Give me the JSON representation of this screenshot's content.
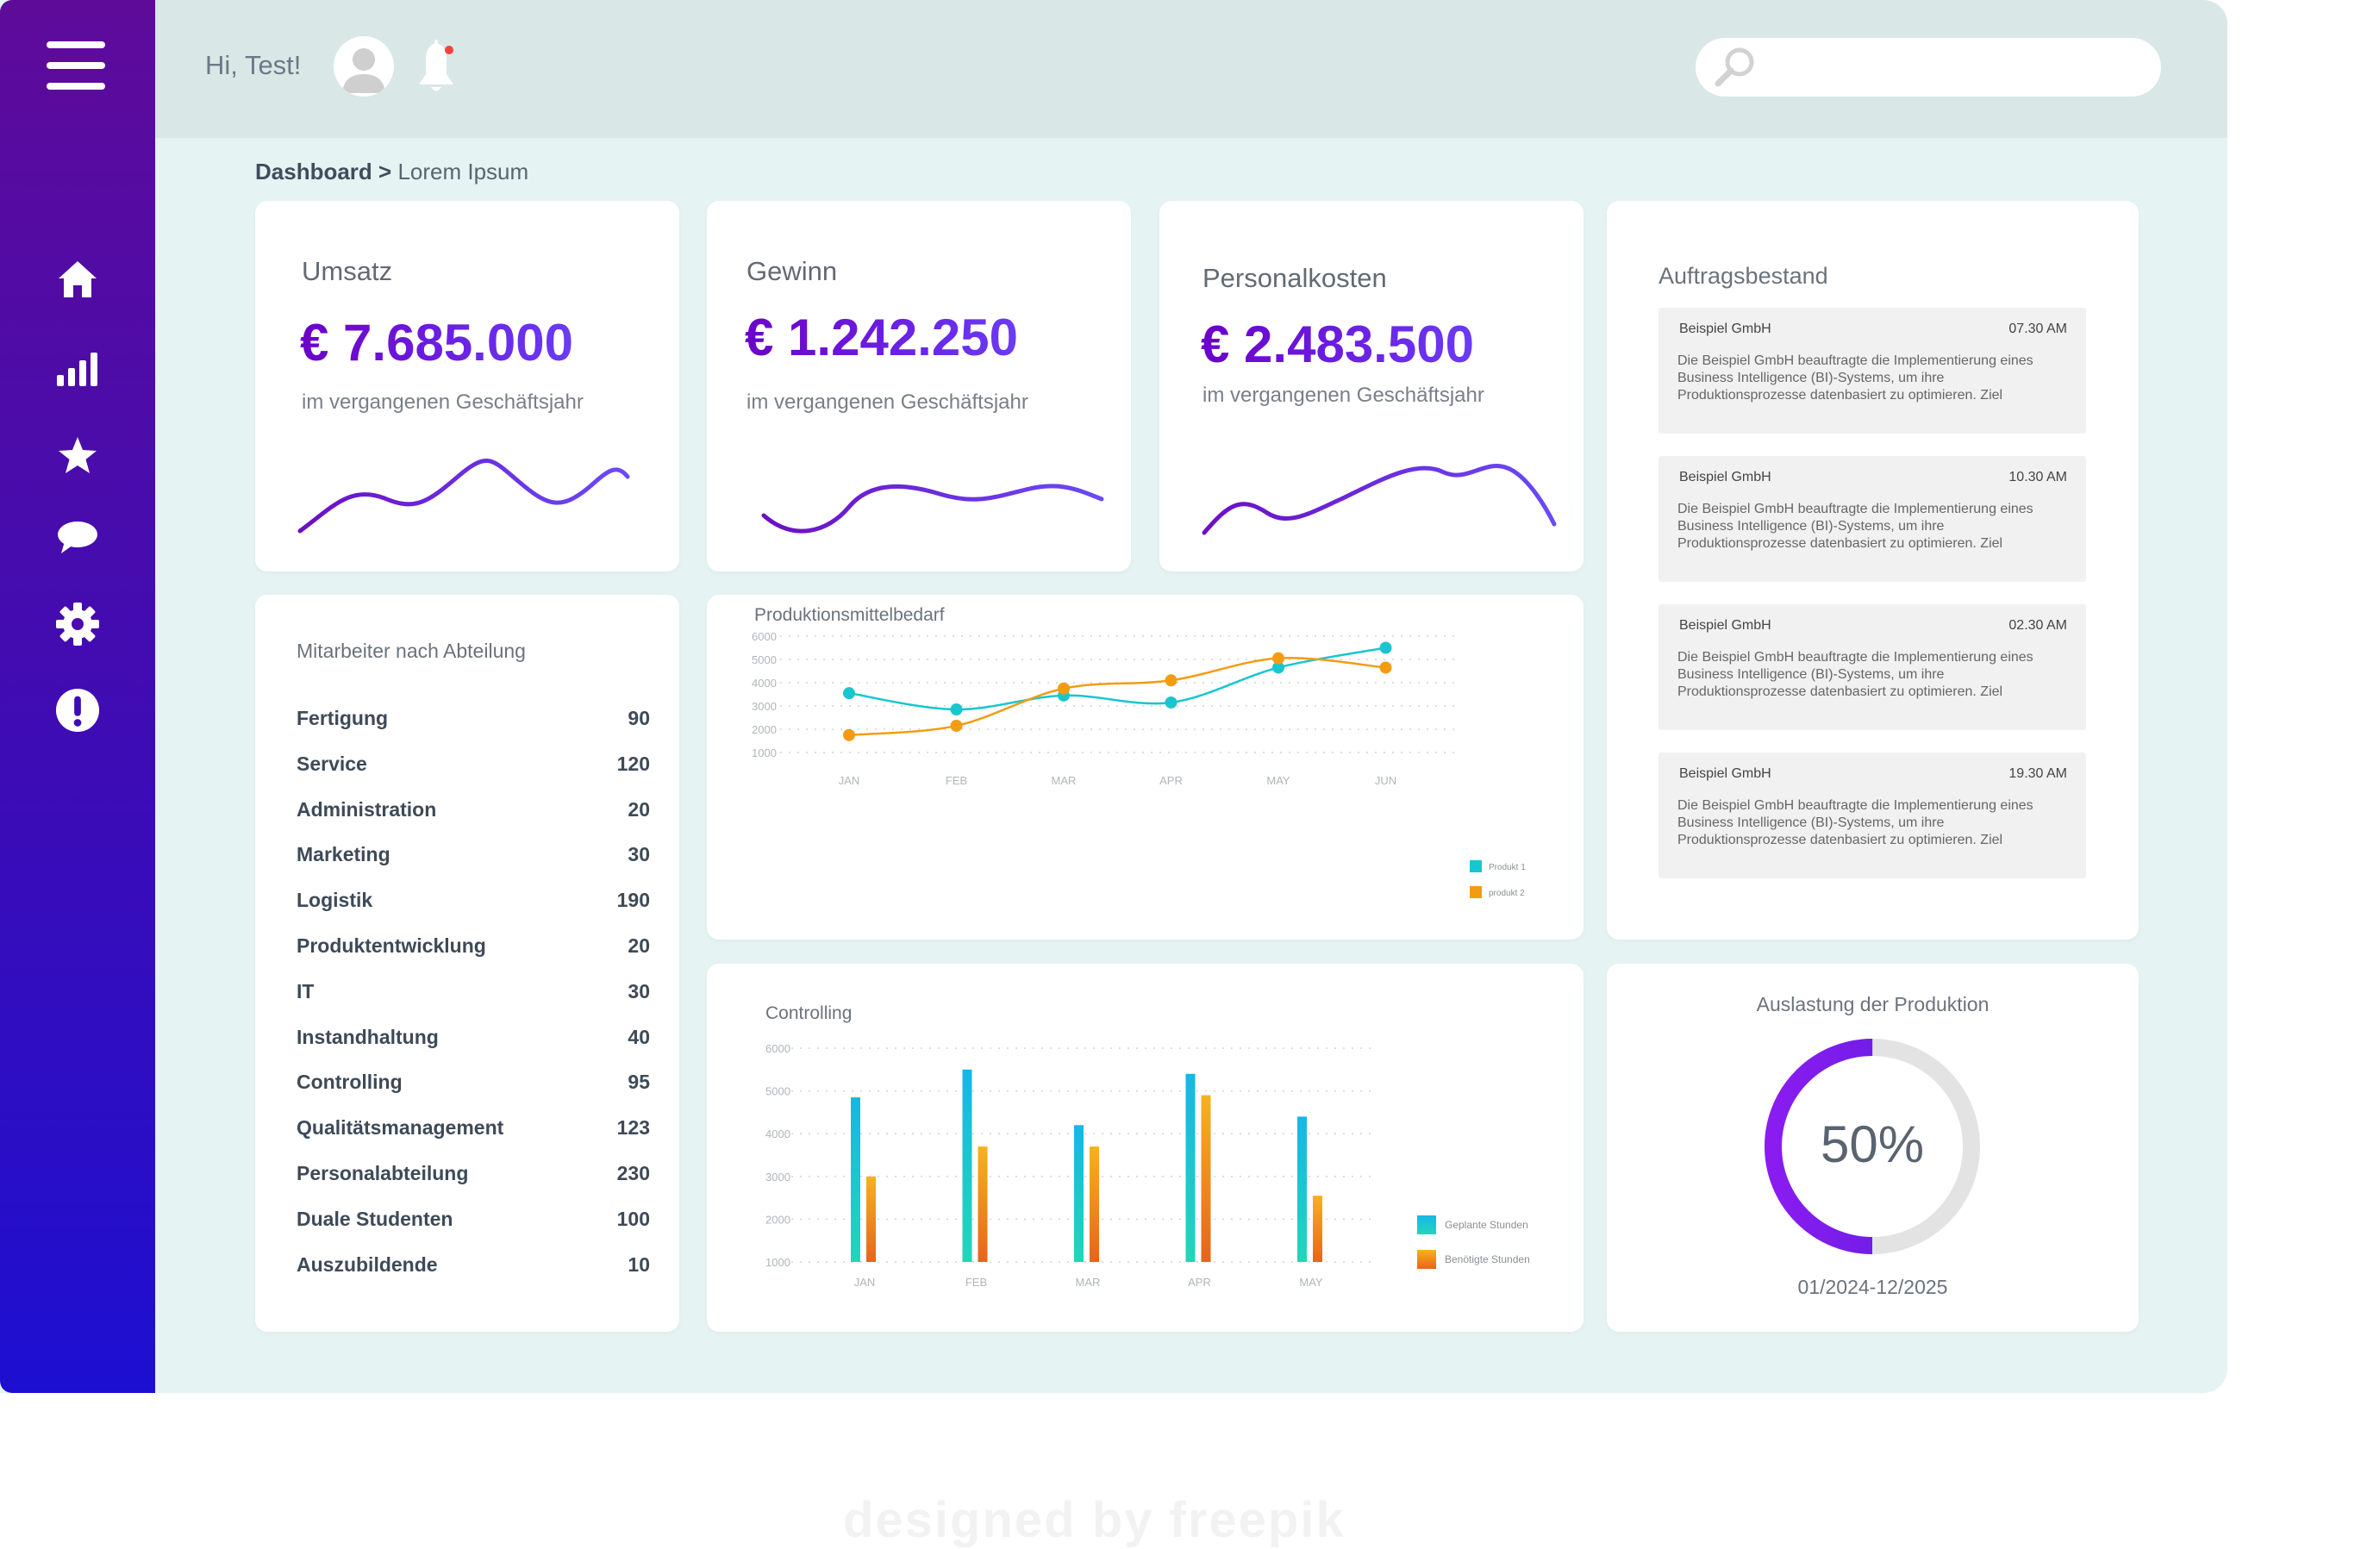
{
  "header": {
    "greeting": "Hi, Test!",
    "search_placeholder": ""
  },
  "breadcrumb": {
    "root": "Dashboard",
    "separator": " > ",
    "current": "Lorem Ipsum"
  },
  "kpis": [
    {
      "label": "Umsatz",
      "value": "€ 7.685.000",
      "sub": "im vergangenen Geschäftsjahr"
    },
    {
      "label": "Gewinn",
      "value": "€ 1.242.250",
      "sub": "im vergangenen Geschäftsjahr"
    },
    {
      "label": "Personalkosten",
      "value": "€ 2.483.500",
      "sub": "im vergangenen Geschäftsjahr"
    }
  ],
  "departments": {
    "title": "Mitarbeiter nach Abteilung",
    "rows": [
      {
        "name": "Fertigung",
        "count": "90"
      },
      {
        "name": "Service",
        "count": "120"
      },
      {
        "name": "Administration",
        "count": "20"
      },
      {
        "name": "Marketing",
        "count": "30"
      },
      {
        "name": "Logistik",
        "count": "190"
      },
      {
        "name": "Produktentwicklung",
        "count": "20"
      },
      {
        "name": "IT",
        "count": "30"
      },
      {
        "name": "Instandhaltung",
        "count": "40"
      },
      {
        "name": "Controlling",
        "count": "95"
      },
      {
        "name": "Qualitätsmanagement",
        "count": "123"
      },
      {
        "name": "Personalabteilung",
        "count": "230"
      },
      {
        "name": "Duale Studenten",
        "count": "100"
      },
      {
        "name": "Auszubildende",
        "count": "10"
      }
    ]
  },
  "orders": {
    "title": "Auftragsbestand",
    "items": [
      {
        "company": "Beispiel GmbH",
        "time": "07.30 AM",
        "text": "Die Beispiel GmbH beauftragte die Implementierung eines Business Intelligence (BI)-Systems, um ihre Produktionsprozesse datenbasiert zu optimieren. Ziel"
      },
      {
        "company": "Beispiel GmbH",
        "time": "10.30 AM",
        "text": "Die Beispiel GmbH beauftragte die Implementierung eines Business Intelligence (BI)-Systems, um ihre Produktionsprozesse datenbasiert zu optimieren. Ziel"
      },
      {
        "company": "Beispiel GmbH",
        "time": "02.30 AM",
        "text": "Die Beispiel GmbH beauftragte die Implementierung eines Business Intelligence (BI)-Systems, um ihre Produktionsprozesse datenbasiert zu optimieren. Ziel"
      },
      {
        "company": "Beispiel GmbH",
        "time": "19.30 AM",
        "text": "Die Beispiel GmbH beauftragte die Implementierung eines Business Intelligence (BI)-Systems, um ihre Produktionsprozesse datenbasiert zu optimieren. Ziel"
      }
    ]
  },
  "utilization": {
    "title": "Auslastung der Produktion",
    "value": 0.5,
    "label": "50%",
    "period": "01/2024-12/2025"
  },
  "colors": {
    "accent": "#6a1fe0",
    "series1": "#19c6cf",
    "series2": "#f39c12"
  },
  "watermark": "designed by freepik",
  "chart_data": [
    {
      "type": "line",
      "title": "Produktionsmittelbedarf",
      "categories": [
        "JAN",
        "FEB",
        "MAR",
        "APR",
        "MAY",
        "JUN"
      ],
      "yticks": [
        "6000",
        "5000",
        "4000",
        "3000",
        "2000",
        "1000"
      ],
      "ylim": [
        1000,
        6000
      ],
      "series": [
        {
          "name": "Produkt 1",
          "values": [
            3550,
            2850,
            3450,
            3150,
            4650,
            5500
          ]
        },
        {
          "name": "produkt 2",
          "values": [
            1750,
            2150,
            3750,
            4100,
            5050,
            4650
          ]
        }
      ],
      "grid": true,
      "legend": "bottom-right"
    },
    {
      "type": "bar",
      "title": "Controlling",
      "categories": [
        "JAN",
        "FEB",
        "MAR",
        "APR",
        "MAY"
      ],
      "yticks": [
        "6000",
        "5000",
        "4000",
        "3000",
        "2000",
        "1000"
      ],
      "ylim": [
        1000,
        6000
      ],
      "series": [
        {
          "name": "Geplante Stunden",
          "values": [
            4850,
            5500,
            4200,
            5400,
            4400
          ]
        },
        {
          "name": "Benötigte Stunden",
          "values": [
            3000,
            3700,
            3700,
            4900,
            2550
          ]
        }
      ],
      "grid": true,
      "legend": "right"
    }
  ]
}
